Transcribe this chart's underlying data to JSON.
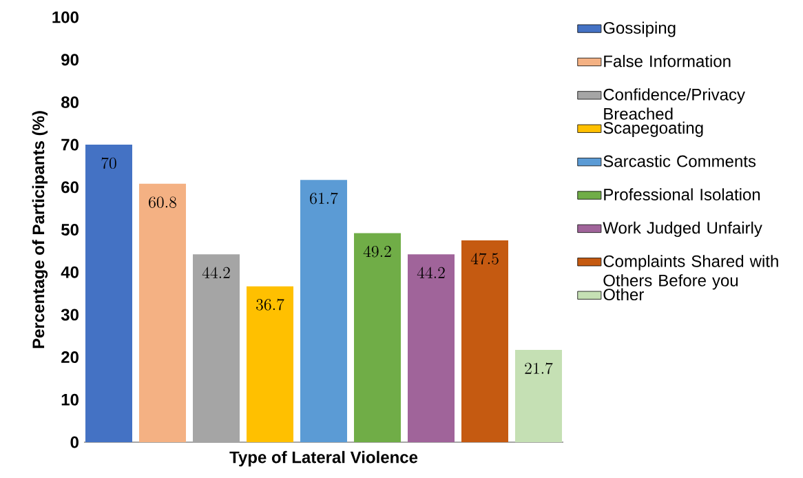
{
  "chart_data": {
    "type": "bar",
    "xlabel": "Type of Lateral Violence",
    "ylabel": "Percentage of Participants (%)",
    "categories": [
      null
    ],
    "series": [
      {
        "name": "Gossiping",
        "color": "#4472c4",
        "values": [
          70
        ]
      },
      {
        "name": "False Information",
        "color": "#f4b183",
        "values": [
          60.8
        ]
      },
      {
        "name": "Confidence/Privacy Breached",
        "color": "#a5a5a5",
        "values": [
          44.2
        ]
      },
      {
        "name": "Scapegoating",
        "color": "#ffc000",
        "values": [
          36.7
        ]
      },
      {
        "name": "Sarcastic Comments",
        "color": "#5b9bd5",
        "values": [
          61.7
        ]
      },
      {
        "name": "Professional Isolation",
        "color": "#70ad47",
        "values": [
          49.2
        ]
      },
      {
        "name": "Work Judged Unfairly",
        "color": "#a0649a",
        "values": [
          44.2
        ]
      },
      {
        "name": "Complaints Shared with Others Before you",
        "color": "#c55a11",
        "values": [
          47.5
        ]
      },
      {
        "name": "Other",
        "color": "#c5e0b4",
        "values": [
          21.7
        ]
      }
    ],
    "ylim": [
      0,
      100
    ],
    "yticks": [
      0,
      10,
      20,
      30,
      40,
      50,
      60,
      70,
      80,
      90,
      100
    ],
    "grid": false,
    "legend": "right",
    "data_labels": true
  }
}
